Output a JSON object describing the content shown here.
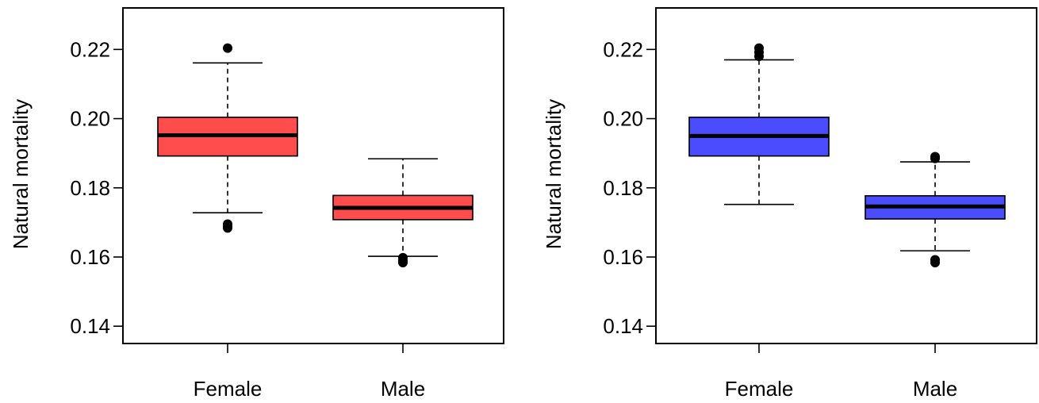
{
  "chart_data": [
    {
      "type": "boxplot",
      "title": "",
      "xlabel": "",
      "ylabel": "Natural mortality",
      "ylim": [
        0.135,
        0.232
      ],
      "yticks": [
        "0.14",
        "0.16",
        "0.18",
        "0.20",
        "0.22"
      ],
      "yticks_values": [
        0.14,
        0.16,
        0.18,
        0.2,
        0.22
      ],
      "categories": [
        "Female",
        "Male"
      ],
      "fill_color": "#ff4c4c",
      "boxes": [
        {
          "category": "Female",
          "whisker_low": 0.1728,
          "q1": 0.1892,
          "median": 0.1952,
          "q3": 0.2004,
          "whisker_high": 0.2161,
          "outliers": [
            0.2204,
            0.1695,
            0.1688,
            0.1684
          ]
        },
        {
          "category": "Male",
          "whisker_low": 0.1602,
          "q1": 0.1708,
          "median": 0.1742,
          "q3": 0.1778,
          "whisker_high": 0.1884,
          "outliers": [
            0.1598,
            0.159,
            0.1584
          ]
        }
      ]
    },
    {
      "type": "boxplot",
      "title": "",
      "xlabel": "",
      "ylabel": "Natural mortality",
      "ylim": [
        0.135,
        0.232
      ],
      "yticks": [
        "0.14",
        "0.16",
        "0.18",
        "0.20",
        "0.22"
      ],
      "yticks_values": [
        0.14,
        0.16,
        0.18,
        0.2,
        0.22
      ],
      "categories": [
        "Female",
        "Male"
      ],
      "fill_color": "#4c4cff",
      "boxes": [
        {
          "category": "Female",
          "whisker_low": 0.1752,
          "q1": 0.1892,
          "median": 0.195,
          "q3": 0.2004,
          "whisker_high": 0.217,
          "outliers": [
            0.2204,
            0.2192,
            0.218
          ]
        },
        {
          "category": "Male",
          "whisker_low": 0.1618,
          "q1": 0.171,
          "median": 0.1746,
          "q3": 0.1777,
          "whisker_high": 0.1875,
          "outliers": [
            0.189,
            0.1885,
            0.1592,
            0.1584
          ]
        }
      ]
    }
  ]
}
